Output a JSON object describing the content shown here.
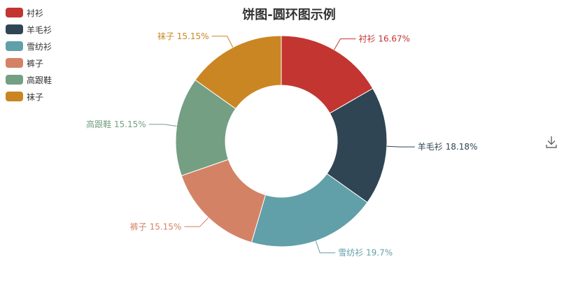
{
  "chart_data": {
    "type": "pie",
    "variant": "donut",
    "title": "饼图-圆环图示例",
    "categories": [
      "衬衫",
      "羊毛衫",
      "雪纺衫",
      "裤子",
      "高跟鞋",
      "袜子"
    ],
    "values": [
      16.67,
      18.18,
      19.7,
      15.15,
      15.15,
      15.15
    ],
    "labels": [
      "衬衫 16.67%",
      "羊毛衫 18.18%",
      "雪纺衫 19.7%",
      "裤子 15.15%",
      "高跟鞋 15.15%",
      "袜子 15.15%"
    ],
    "colors": [
      "#c23531",
      "#2f4554",
      "#61a0a8",
      "#d48265",
      "#749f83",
      "#ca8622"
    ],
    "legend_position": "top-left"
  },
  "toolbox": {
    "download_icon": "download-icon"
  }
}
